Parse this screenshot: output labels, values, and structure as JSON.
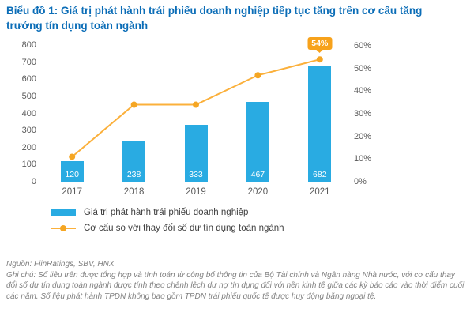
{
  "title": "Biểu đồ 1: Giá trị phát hành trái phiếu doanh nghiệp tiếp tục tăng trên cơ cấu tăng trưởng tín dụng toàn ngành",
  "colors": {
    "title_text": "#0B6DB7",
    "bar_fill": "#29ABE2",
    "line_stroke": "#FBB03B",
    "callout_fill": "#F7A21B",
    "axis_text": "#595959",
    "footer_text": "#808080",
    "bar_label_text": "#FFFFFF"
  },
  "chart_data": {
    "type": "bar",
    "subtype": "combo-bar-line-dual-axis",
    "categories": [
      "2017",
      "2018",
      "2019",
      "2020",
      "2021"
    ],
    "series": [
      {
        "name": "Giá trị phát hành trái phiếu doanh nghiệp",
        "type": "bar",
        "axis": "left",
        "values": [
          120,
          238,
          333,
          467,
          682
        ],
        "data_labels": [
          "120",
          "238",
          "333",
          "467",
          "682"
        ]
      },
      {
        "name": "Cơ cấu so với thay đổi số dư tín dụng toàn ngành",
        "type": "line",
        "axis": "right",
        "values": [
          11,
          34,
          34,
          47,
          54
        ],
        "labeled_point": {
          "category": "2021",
          "label": "54%"
        }
      }
    ],
    "left_axis": {
      "min": 0,
      "max": 800,
      "ticks": [
        "800",
        "700",
        "600",
        "500",
        "400",
        "300",
        "200",
        "100",
        "0"
      ]
    },
    "right_axis": {
      "min": 0,
      "max": 60,
      "ticks": [
        "60%",
        "50%",
        "40%",
        "30%",
        "20%",
        "10%",
        "0%"
      ]
    },
    "grid": false,
    "legend_position": "bottom-left"
  },
  "legend": [
    {
      "swatch": "bar",
      "label": "Giá trị phát hành trái phiếu doanh nghiệp"
    },
    {
      "swatch": "line",
      "label": "Cơ cấu so với thay đổi số dư tín dụng toàn ngành"
    }
  ],
  "footer": {
    "source": "Nguồn: FiinRatings, SBV, HNX",
    "note": "Ghi chú: Số liệu trên được tổng hợp và tính toán từ công bố thông tin của Bộ Tài chính và Ngân hàng Nhà nước, với cơ cấu thay đổi số dư tín dụng toàn ngành được tính theo chênh lệch dư nợ tín dụng đối với nền kinh tế giữa các kỳ báo cáo vào thời điểm cuối các năm. Số liệu phát hành TPDN không bao gồm TPDN trái phiếu quốc tế được huy động bằng ngoại tệ."
  }
}
